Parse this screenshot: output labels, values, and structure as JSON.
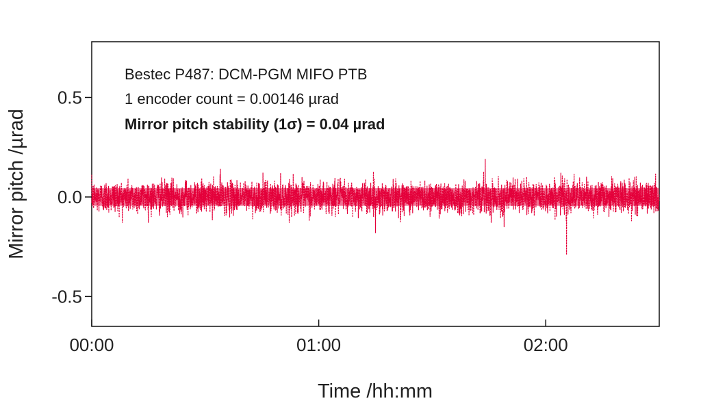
{
  "chart_data": {
    "type": "line",
    "title": "",
    "xlabel": "Time /hh:mm",
    "ylabel": "Mirror pitch /µrad",
    "xlim_minutes": [
      0,
      150
    ],
    "ylim": [
      -0.65,
      0.78
    ],
    "x_ticks": [
      {
        "value": 0,
        "label": "00:00"
      },
      {
        "value": 60,
        "label": "01:00"
      },
      {
        "value": 120,
        "label": "02:00"
      }
    ],
    "y_ticks": [
      {
        "value": 0.5,
        "label": "0.5"
      },
      {
        "value": 0.0,
        "label": "0.0"
      },
      {
        "value": -0.5,
        "label": "-0.5"
      }
    ],
    "annotations": [
      "Bestec P487: DCM-PGM MIFO PTB",
      "1 encoder count = 0.00146 µrad",
      "Mirror pitch stability (1σ) = 0.04 µrad"
    ],
    "series": [
      {
        "color": "#e4003a",
        "line_style": "dotted",
        "sigma": 0.04,
        "mean": 0.0,
        "x_range_minutes": [
          0,
          150
        ],
        "notable_spikes": [
          {
            "x": 34,
            "y": 0.14
          },
          {
            "x": 75,
            "y": -0.18
          },
          {
            "x": 104,
            "y": 0.19
          },
          {
            "x": 109,
            "y": -0.15
          },
          {
            "x": 124,
            "y": 0.12
          },
          {
            "x": 125.5,
            "y": -0.29
          }
        ]
      }
    ],
    "grid": false,
    "legend": "none"
  }
}
